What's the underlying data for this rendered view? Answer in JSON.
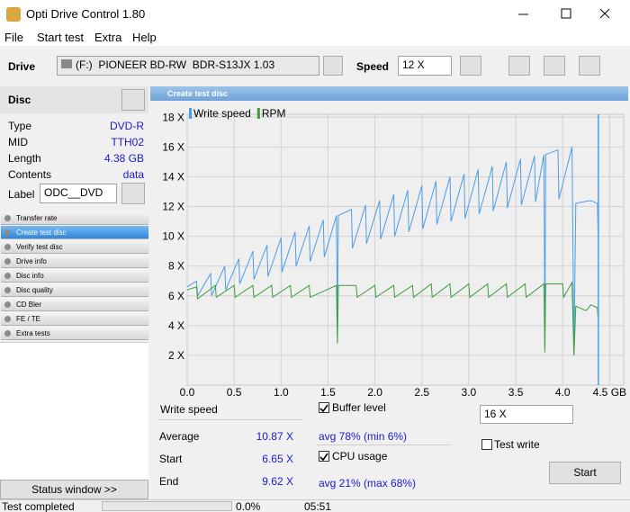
{
  "window": {
    "title": "Opti Drive Control 1.80"
  },
  "menu": [
    "File",
    "Start test",
    "Extra",
    "Help"
  ],
  "toolbar": {
    "drive_label": "Drive",
    "drive": "(F:)  PIONEER BD-RW  BDR-S13JX 1.03",
    "speed_label": "Speed",
    "speed": "12 X"
  },
  "disc": {
    "title": "Disc",
    "fields": [
      [
        "Type",
        "DVD-R"
      ],
      [
        "MID",
        "TTH02"
      ],
      [
        "Length",
        "4.38 GB"
      ],
      [
        "Contents",
        "data"
      ]
    ],
    "label_caption": "Label",
    "label": "ODC__DVD"
  },
  "nav": {
    "items": [
      "Transfer rate",
      "Create test disc",
      "Verify test disc",
      "Drive info",
      "Disc info",
      "Disc quality",
      "CD Bler",
      "FE / TE",
      "Extra tests"
    ],
    "selected": 1
  },
  "status_window": "Status window >>",
  "panel_title": "Create test disc",
  "chart_data": {
    "type": "line",
    "series": [
      {
        "name": "Write speed",
        "color": "#4a9ee8",
        "x": [
          0,
          0.1,
          0.11,
          0.25,
          0.26,
          0.4,
          0.41,
          0.55,
          0.56,
          0.7,
          0.71,
          0.85,
          0.86,
          1.0,
          1.01,
          1.15,
          1.16,
          1.3,
          1.31,
          1.45,
          1.46,
          1.59,
          1.6,
          1.61,
          1.75,
          1.76,
          1.9,
          1.91,
          2.05,
          2.06,
          2.2,
          2.21,
          2.35,
          2.36,
          2.5,
          2.51,
          2.65,
          2.66,
          2.8,
          2.81,
          2.95,
          2.96,
          3.1,
          3.11,
          3.25,
          3.26,
          3.4,
          3.41,
          3.55,
          3.56,
          3.7,
          3.71,
          3.8,
          3.81,
          3.82,
          3.95,
          3.96,
          4.1,
          4.12,
          4.14,
          4.2,
          4.3,
          4.37,
          4.38
        ],
        "values": [
          6.6,
          7.0,
          6.0,
          7.5,
          6.0,
          8.0,
          6.4,
          8.5,
          6.8,
          9.0,
          7.1,
          9.4,
          7.3,
          9.9,
          7.6,
          10.3,
          8.0,
          10.7,
          8.3,
          11.1,
          8.6,
          11.4,
          4.5,
          11.4,
          11.8,
          9.2,
          12.1,
          9.5,
          12.4,
          9.8,
          12.8,
          10.0,
          13.1,
          10.3,
          13.4,
          10.5,
          13.7,
          10.8,
          14.0,
          11.0,
          14.2,
          11.2,
          14.5,
          11.5,
          14.7,
          11.7,
          15.0,
          11.9,
          15.2,
          12.1,
          15.4,
          12.3,
          15.5,
          3.5,
          15.5,
          15.8,
          12.5,
          16.0,
          2.0,
          12.2,
          12.3,
          12.4,
          12.2,
          9.6
        ]
      },
      {
        "name": "RPM",
        "color": "#3c9b3c",
        "x": [
          0,
          0.1,
          0.11,
          0.3,
          0.31,
          0.5,
          0.51,
          0.7,
          0.71,
          0.9,
          0.91,
          1.1,
          1.11,
          1.3,
          1.31,
          1.59,
          1.6,
          1.61,
          1.8,
          1.81,
          2.0,
          2.01,
          2.2,
          2.21,
          2.4,
          2.41,
          2.6,
          2.61,
          2.8,
          2.81,
          3.0,
          3.01,
          3.2,
          3.21,
          3.4,
          3.41,
          3.6,
          3.61,
          3.8,
          3.81,
          3.82,
          4.0,
          4.01,
          4.1,
          4.12,
          4.14,
          4.25,
          4.3,
          4.37,
          4.38
        ],
        "values": [
          6.4,
          6.6,
          5.8,
          6.7,
          5.9,
          6.7,
          5.9,
          6.7,
          5.9,
          6.7,
          5.9,
          6.7,
          5.9,
          6.7,
          5.9,
          6.7,
          2.8,
          6.7,
          6.7,
          5.9,
          6.7,
          5.9,
          6.7,
          5.9,
          6.7,
          5.9,
          6.8,
          5.9,
          6.8,
          5.9,
          6.8,
          5.9,
          6.8,
          5.9,
          6.8,
          5.9,
          6.8,
          5.9,
          6.8,
          2.2,
          6.8,
          6.8,
          5.9,
          6.9,
          2.0,
          5.3,
          5.0,
          5.4,
          5.2,
          4.2
        ]
      }
    ],
    "xlim": [
      0,
      4.65
    ],
    "xticks": [
      {
        "value": 0,
        "label": "0.0"
      },
      0.5,
      {
        "value": 1,
        "label": "1.0"
      },
      1.5,
      {
        "value": 2,
        "label": "2.0"
      },
      2.5,
      {
        "value": 3,
        "label": "3.0"
      },
      3.5,
      {
        "value": 4,
        "label": "4.0"
      },
      {
        "value": 4.5,
        "label": "4.5 GB"
      }
    ],
    "ylim": [
      0,
      18.2
    ],
    "yticks": [
      {
        "value": 2,
        "label": "2 X"
      },
      {
        "value": 4,
        "label": "4 X"
      },
      {
        "value": 6,
        "label": "6 X"
      },
      {
        "value": 8,
        "label": "8 X"
      },
      {
        "value": 10,
        "label": "10 X"
      },
      {
        "value": 12,
        "label": "12 X"
      },
      {
        "value": 14,
        "label": "14 X"
      },
      {
        "value": 16,
        "label": "16 X"
      },
      {
        "value": 18,
        "label": "18 X"
      }
    ],
    "grid": true
  },
  "stats": {
    "title": "Write speed",
    "rows": [
      [
        "Average",
        "10.87 X"
      ],
      [
        "Start",
        "6.65 X"
      ],
      [
        "End",
        "9.62 X"
      ]
    ],
    "buffer": {
      "label": "Buffer level",
      "checked": true,
      "summary": "avg 78% (min 6%)"
    },
    "cpu": {
      "label": "CPU usage",
      "checked": true,
      "summary": "avg 21% (max 68%)"
    },
    "speed": "16 X",
    "test_write": {
      "label": "Test write",
      "checked": false
    },
    "start": "Start"
  },
  "status_bar": {
    "text": "Test completed",
    "progress": "0.0%",
    "time": "05:51"
  }
}
